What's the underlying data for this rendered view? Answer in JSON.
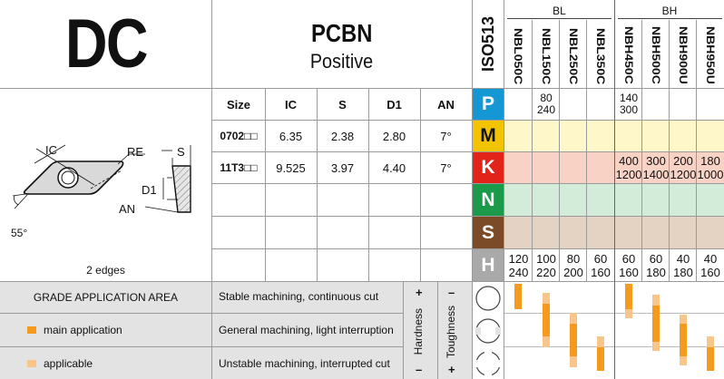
{
  "header": {
    "shape_code": "DC",
    "material": "PCBN",
    "geometry": "Positive",
    "iso_label": "ISO513",
    "group_bl": "BL",
    "group_bh": "BH",
    "grades": [
      "NBL050C",
      "NBL150C",
      "NBL250C",
      "NBL350C",
      "NBH450C",
      "NBH500C",
      "NBH900U",
      "NBH950U"
    ]
  },
  "drawing": {
    "ic_label": "IC",
    "re_label": "RE",
    "s_label": "S",
    "d1_label": "D1",
    "an_label": "AN",
    "angle_label": "55°",
    "edges": "2 edges"
  },
  "dims": {
    "headers": [
      "Size",
      "IC",
      "S",
      "D1",
      "AN"
    ],
    "rows": [
      {
        "size": "0702□□",
        "ic": "6.35",
        "s": "2.38",
        "d1": "2.80",
        "an": "7°"
      },
      {
        "size": "11T3□□",
        "ic": "9.525",
        "s": "3.97",
        "d1": "4.40",
        "an": "7°"
      }
    ]
  },
  "iso_groups": [
    {
      "letter": "P",
      "color": "#1597d4",
      "tint": "#ffffff"
    },
    {
      "letter": "M",
      "color": "#f2c300",
      "tint": "#fdf7c9"
    },
    {
      "letter": "K",
      "color": "#e2231a",
      "tint": "#f9d2c6"
    },
    {
      "letter": "N",
      "color": "#1a9a4a",
      "tint": "#d3ecda"
    },
    {
      "letter": "S",
      "color": "#7a4b26",
      "tint": "#e4d3c3"
    },
    {
      "letter": "H",
      "color": "#a9a9a9",
      "tint": "#ffffff"
    }
  ],
  "cutting_speeds": {
    "P": [
      [
        "",
        ""
      ],
      [
        "80",
        "240"
      ],
      [
        "",
        ""
      ],
      [
        "",
        ""
      ],
      [
        "140",
        "300"
      ],
      [
        "",
        ""
      ],
      [
        "",
        ""
      ],
      [
        "",
        ""
      ]
    ],
    "K": [
      [
        "",
        ""
      ],
      [
        "",
        ""
      ],
      [
        "",
        ""
      ],
      [
        "",
        ""
      ],
      [
        "400",
        "1200"
      ],
      [
        "300",
        "1400"
      ],
      [
        "200",
        "1200"
      ],
      [
        "180",
        "1000"
      ]
    ],
    "H": [
      [
        "120",
        "240"
      ],
      [
        "100",
        "220"
      ],
      [
        "80",
        "200"
      ],
      [
        "60",
        "160"
      ],
      [
        "60",
        "160"
      ],
      [
        "60",
        "180"
      ],
      [
        "40",
        "180"
      ],
      [
        "40",
        "160"
      ]
    ]
  },
  "application": {
    "title": "GRADE APPLICATION AREA",
    "legend_main": "main application",
    "legend_applicable": "applicable",
    "condition_1": "Stable machining, continuous cut",
    "condition_2": "General machining, light interruption",
    "condition_3": "Unstable machining, interrupted cut",
    "hardness_label": "Hardness",
    "toughness_label": "Toughness",
    "plus": "+",
    "minus": "–",
    "main_color": "#f39a1f",
    "applicable_color": "#f8c58a"
  }
}
